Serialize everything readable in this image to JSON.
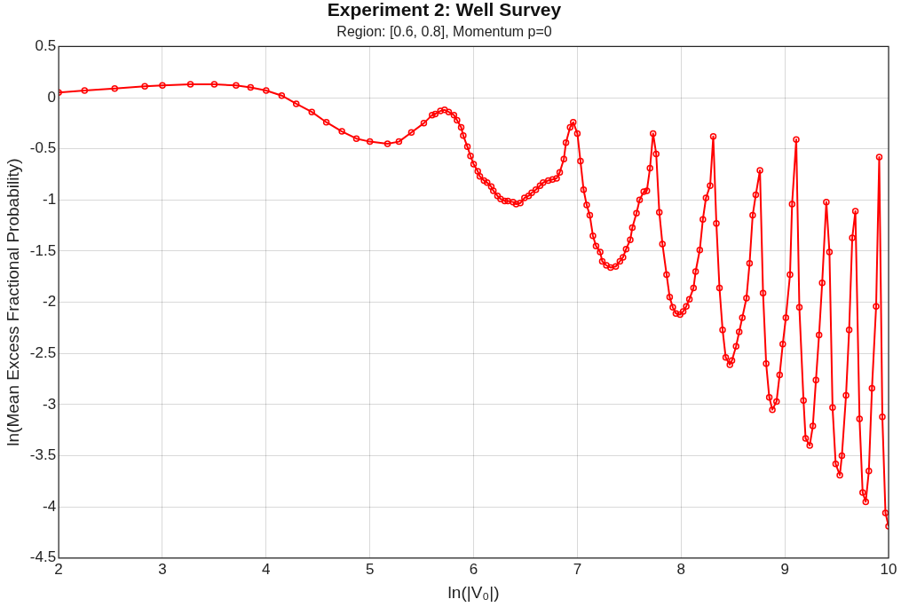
{
  "chart_data": {
    "type": "line",
    "title": "Experiment 2: Well Survey",
    "subtitle": "Region: [0.6, 0.8], Momentum p=0",
    "xlabel": "ln(|V₀|)",
    "ylabel": "ln(Mean Excess Fractional Probability)",
    "xlim": [
      2,
      10
    ],
    "xticks": [
      2,
      3,
      4,
      5,
      6,
      7,
      8,
      9,
      10
    ],
    "ylim": [
      -4.5,
      0.5
    ],
    "yticks": [
      -4.5,
      -4,
      -3.5,
      -3,
      -2.5,
      -2,
      -1.5,
      -1,
      -0.5,
      0,
      0.5
    ],
    "grid": true,
    "marker": "circle",
    "line_style": "solid",
    "legend": false,
    "series": [
      {
        "color": "#ff0000",
        "x": [
          2,
          2.25,
          2.54,
          2.83,
          3,
          3.27,
          3.5,
          3.71,
          3.85,
          4,
          4.15,
          4.29,
          4.44,
          4.58,
          4.73,
          4.87,
          5,
          5.17,
          5.28,
          5.4,
          5.52,
          5.6,
          5.63,
          5.68,
          5.72,
          5.76,
          5.81,
          5.84,
          5.88,
          5.9,
          5.94,
          5.97,
          6,
          6.04,
          6.06,
          6.1,
          6.13,
          6.17,
          6.19,
          6.23,
          6.26,
          6.3,
          6.33,
          6.38,
          6.41,
          6.45,
          6.49,
          6.53,
          6.56,
          6.6,
          6.64,
          6.67,
          6.72,
          6.76,
          6.8,
          6.83,
          6.87,
          6.89,
          6.93,
          6.96,
          7,
          7.03,
          7.06,
          7.09,
          7.12,
          7.15,
          7.18,
          7.22,
          7.24,
          7.28,
          7.32,
          7.37,
          7.41,
          7.44,
          7.47,
          7.51,
          7.53,
          7.57,
          7.6,
          7.64,
          7.67,
          7.7,
          7.73,
          7.76,
          7.79,
          7.82,
          7.86,
          7.89,
          7.92,
          7.95,
          7.99,
          8.02,
          8.05,
          8.08,
          8.12,
          8.14,
          8.18,
          8.21,
          8.24,
          8.28,
          8.31,
          8.34,
          8.37,
          8.4,
          8.43,
          8.47,
          8.49,
          8.53,
          8.56,
          8.59,
          8.63,
          8.66,
          8.69,
          8.72,
          8.76,
          8.79,
          8.82,
          8.85,
          8.88,
          8.92,
          8.95,
          8.98,
          9.01,
          9.05,
          9.07,
          9.11,
          9.14,
          9.18,
          9.2,
          9.24,
          9.27,
          9.3,
          9.33,
          9.36,
          9.4,
          9.43,
          9.46,
          9.49,
          9.53,
          9.55,
          9.59,
          9.62,
          9.65,
          9.68,
          9.72,
          9.75,
          9.78,
          9.81,
          9.84,
          9.88,
          9.91,
          9.94,
          9.97,
          10
        ],
        "values": [
          0.05,
          0.07,
          0.09,
          0.11,
          0.12,
          0.13,
          0.13,
          0.12,
          0.1,
          0.07,
          0.02,
          -0.06,
          -0.14,
          -0.24,
          -0.33,
          -0.4,
          -0.43,
          -0.45,
          -0.43,
          -0.34,
          -0.25,
          -0.17,
          -0.16,
          -0.13,
          -0.12,
          -0.14,
          -0.17,
          -0.22,
          -0.29,
          -0.37,
          -0.48,
          -0.57,
          -0.65,
          -0.72,
          -0.77,
          -0.81,
          -0.83,
          -0.87,
          -0.91,
          -0.96,
          -0.99,
          -1.01,
          -1.01,
          -1.02,
          -1.04,
          -1.03,
          -0.98,
          -0.96,
          -0.93,
          -0.9,
          -0.86,
          -0.83,
          -0.81,
          -0.8,
          -0.79,
          -0.73,
          -0.6,
          -0.44,
          -0.29,
          -0.24,
          -0.35,
          -0.62,
          -0.9,
          -1.05,
          -1.15,
          -1.35,
          -1.45,
          -1.51,
          -1.6,
          -1.64,
          -1.66,
          -1.65,
          -1.6,
          -1.56,
          -1.48,
          -1.39,
          -1.27,
          -1.13,
          -1,
          -0.92,
          -0.91,
          -0.69,
          -0.35,
          -0.55,
          -1.12,
          -1.43,
          -1.73,
          -1.95,
          -2.05,
          -2.11,
          -2.12,
          -2.09,
          -2.04,
          -1.97,
          -1.86,
          -1.7,
          -1.49,
          -1.19,
          -0.98,
          -0.86,
          -0.38,
          -1.23,
          -1.86,
          -2.27,
          -2.54,
          -2.61,
          -2.57,
          -2.43,
          -2.29,
          -2.15,
          -1.96,
          -1.62,
          -1.15,
          -0.95,
          -0.71,
          -1.91,
          -2.6,
          -2.93,
          -3.05,
          -2.97,
          -2.71,
          -2.41,
          -2.15,
          -1.73,
          -1.04,
          -0.41,
          -2.05,
          -2.96,
          -3.33,
          -3.4,
          -3.21,
          -2.76,
          -2.32,
          -1.81,
          -1.02,
          -1.51,
          -3.03,
          -3.58,
          -3.69,
          -3.5,
          -2.91,
          -2.27,
          -1.37,
          -1.11,
          -3.14,
          -3.86,
          -3.95,
          -3.65,
          -2.84,
          -2.04,
          -0.58,
          -3.12,
          -4.06,
          -4.19
        ]
      }
    ]
  }
}
